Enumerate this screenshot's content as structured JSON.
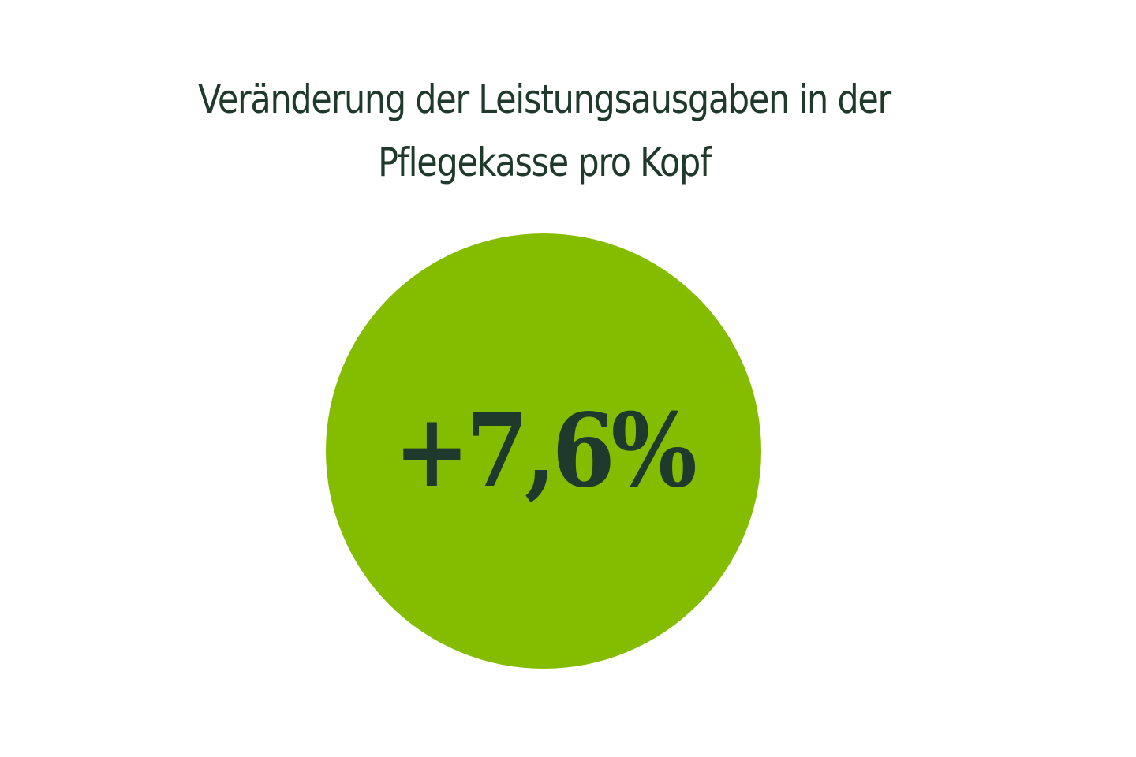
{
  "title": {
    "line1": "Veränderung der Leistungsausgaben in der",
    "line2": "Pflegekasse pro Kopf"
  },
  "value": "+7,6%",
  "colors": {
    "circle": "#84bc00",
    "text": "#1f3a2c",
    "background": "#ffffff"
  },
  "chart_data": {
    "type": "pie",
    "title": "Veränderung der Leistungsausgaben in der Pflegekasse pro Kopf",
    "categories": [
      "Veränderung der Leistungsausgaben pro Kopf"
    ],
    "values": [
      7.6
    ],
    "unit": "%",
    "annotations": [
      "+7,6%"
    ],
    "xlabel": "",
    "ylabel": "",
    "legend": "none"
  }
}
